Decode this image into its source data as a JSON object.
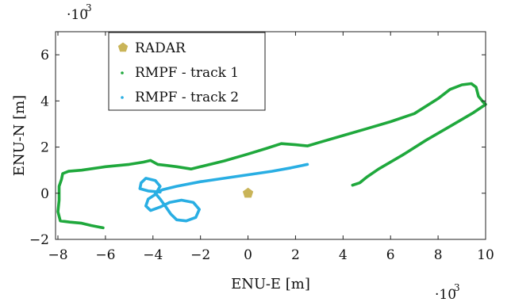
{
  "chart_data": {
    "type": "line",
    "title": "",
    "xlabel": "ENU-E [m]",
    "ylabel": "ENU-N [m]",
    "x_multiplier_label": "·10",
    "y_multiplier_label": "·10",
    "multiplier_exponent": "3",
    "xlim": [
      -8.1,
      10
    ],
    "ylim": [
      -2,
      7
    ],
    "xticks": [
      -8,
      -6,
      -4,
      -2,
      0,
      2,
      4,
      6,
      8,
      10
    ],
    "xtick_labels": [
      "−8",
      "−6",
      "−4",
      "−2",
      "0",
      "2",
      "4",
      "6",
      "8",
      "10"
    ],
    "yticks": [
      -2,
      0,
      2,
      4,
      6
    ],
    "ytick_labels": [
      "−2",
      "0",
      "2",
      "4",
      "6"
    ],
    "grid": false,
    "legend_position": "top-left",
    "units_note": "values in units of 10^3 m",
    "radar": {
      "name": "RADAR",
      "color": "#c9b458",
      "marker": "pentagon",
      "x": 0.0,
      "y": 0.0
    },
    "series": [
      {
        "name": "RMPF - track 1",
        "color": "#1fa83c",
        "points": [
          [
            -6.1,
            -1.5
          ],
          [
            -6.6,
            -1.4
          ],
          [
            -7.0,
            -1.3
          ],
          [
            -7.5,
            -1.25
          ],
          [
            -7.9,
            -1.2
          ],
          [
            -8.0,
            -0.8
          ],
          [
            -7.95,
            -0.3
          ],
          [
            -7.95,
            0.3
          ],
          [
            -7.85,
            0.6
          ],
          [
            -7.8,
            0.85
          ],
          [
            -7.55,
            0.95
          ],
          [
            -7.0,
            1.0
          ],
          [
            -6.0,
            1.15
          ],
          [
            -5.0,
            1.25
          ],
          [
            -4.4,
            1.35
          ],
          [
            -4.1,
            1.42
          ],
          [
            -3.8,
            1.25
          ],
          [
            -3.4,
            1.2
          ],
          [
            -3.0,
            1.15
          ],
          [
            -2.4,
            1.05
          ],
          [
            -2.0,
            1.15
          ],
          [
            -1.0,
            1.4
          ],
          [
            0.0,
            1.7
          ],
          [
            0.8,
            1.95
          ],
          [
            1.4,
            2.15
          ],
          [
            2.0,
            2.1
          ],
          [
            2.5,
            2.05
          ],
          [
            3.0,
            2.2
          ],
          [
            4.0,
            2.5
          ],
          [
            5.0,
            2.8
          ],
          [
            6.0,
            3.1
          ],
          [
            7.0,
            3.45
          ],
          [
            8.0,
            4.1
          ],
          [
            8.5,
            4.5
          ],
          [
            9.0,
            4.7
          ],
          [
            9.4,
            4.75
          ],
          [
            9.6,
            4.6
          ],
          [
            9.7,
            4.2
          ],
          [
            9.9,
            3.95
          ],
          [
            10.0,
            3.85
          ],
          [
            9.5,
            3.5
          ],
          [
            8.5,
            2.9
          ],
          [
            7.5,
            2.3
          ],
          [
            6.5,
            1.65
          ],
          [
            5.5,
            1.05
          ],
          [
            5.0,
            0.7
          ],
          [
            4.7,
            0.45
          ],
          [
            4.4,
            0.35
          ]
        ]
      },
      {
        "name": "RMPF - track 2",
        "color": "#29aee3",
        "points": [
          [
            2.5,
            1.25
          ],
          [
            1.8,
            1.1
          ],
          [
            1.0,
            0.95
          ],
          [
            0.0,
            0.8
          ],
          [
            -1.0,
            0.65
          ],
          [
            -2.0,
            0.5
          ],
          [
            -3.0,
            0.3
          ],
          [
            -3.6,
            0.15
          ],
          [
            -3.9,
            0.0
          ],
          [
            -3.7,
            -0.25
          ],
          [
            -3.45,
            -0.6
          ],
          [
            -3.25,
            -0.9
          ],
          [
            -3.0,
            -1.15
          ],
          [
            -2.6,
            -1.2
          ],
          [
            -2.2,
            -1.05
          ],
          [
            -2.05,
            -0.7
          ],
          [
            -2.3,
            -0.4
          ],
          [
            -2.8,
            -0.3
          ],
          [
            -3.3,
            -0.4
          ],
          [
            -3.7,
            -0.6
          ],
          [
            -4.1,
            -0.75
          ],
          [
            -4.3,
            -0.55
          ],
          [
            -4.2,
            -0.25
          ],
          [
            -3.9,
            -0.05
          ],
          [
            -3.7,
            0.3
          ],
          [
            -3.9,
            0.55
          ],
          [
            -4.3,
            0.65
          ],
          [
            -4.5,
            0.45
          ],
          [
            -4.55,
            0.2
          ],
          [
            -4.2,
            0.1
          ],
          [
            -3.7,
            0.05
          ]
        ]
      }
    ]
  }
}
